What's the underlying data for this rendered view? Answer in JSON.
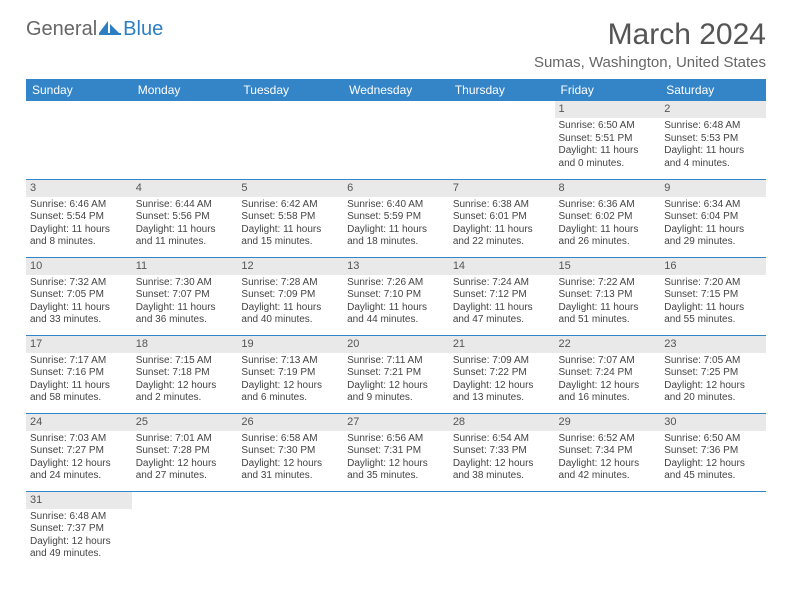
{
  "logo": {
    "part1": "General",
    "part2": "Blue"
  },
  "title": "March 2024",
  "location": "Sumas, Washington, United States",
  "colors": {
    "header_bg": "#3484c8",
    "header_text": "#ffffff",
    "daynum_bg": "#e9e9e9",
    "border": "#3484c8",
    "title_text": "#555555",
    "body_text": "#444444",
    "logo_blue": "#2d7fc4"
  },
  "weekdays": [
    "Sunday",
    "Monday",
    "Tuesday",
    "Wednesday",
    "Thursday",
    "Friday",
    "Saturday"
  ],
  "calendar": {
    "first_weekday_index": 5,
    "days": [
      {
        "n": 1,
        "sunrise": "6:50 AM",
        "sunset": "5:51 PM",
        "daylight": "11 hours and 0 minutes."
      },
      {
        "n": 2,
        "sunrise": "6:48 AM",
        "sunset": "5:53 PM",
        "daylight": "11 hours and 4 minutes."
      },
      {
        "n": 3,
        "sunrise": "6:46 AM",
        "sunset": "5:54 PM",
        "daylight": "11 hours and 8 minutes."
      },
      {
        "n": 4,
        "sunrise": "6:44 AM",
        "sunset": "5:56 PM",
        "daylight": "11 hours and 11 minutes."
      },
      {
        "n": 5,
        "sunrise": "6:42 AM",
        "sunset": "5:58 PM",
        "daylight": "11 hours and 15 minutes."
      },
      {
        "n": 6,
        "sunrise": "6:40 AM",
        "sunset": "5:59 PM",
        "daylight": "11 hours and 18 minutes."
      },
      {
        "n": 7,
        "sunrise": "6:38 AM",
        "sunset": "6:01 PM",
        "daylight": "11 hours and 22 minutes."
      },
      {
        "n": 8,
        "sunrise": "6:36 AM",
        "sunset": "6:02 PM",
        "daylight": "11 hours and 26 minutes."
      },
      {
        "n": 9,
        "sunrise": "6:34 AM",
        "sunset": "6:04 PM",
        "daylight": "11 hours and 29 minutes."
      },
      {
        "n": 10,
        "sunrise": "7:32 AM",
        "sunset": "7:05 PM",
        "daylight": "11 hours and 33 minutes."
      },
      {
        "n": 11,
        "sunrise": "7:30 AM",
        "sunset": "7:07 PM",
        "daylight": "11 hours and 36 minutes."
      },
      {
        "n": 12,
        "sunrise": "7:28 AM",
        "sunset": "7:09 PM",
        "daylight": "11 hours and 40 minutes."
      },
      {
        "n": 13,
        "sunrise": "7:26 AM",
        "sunset": "7:10 PM",
        "daylight": "11 hours and 44 minutes."
      },
      {
        "n": 14,
        "sunrise": "7:24 AM",
        "sunset": "7:12 PM",
        "daylight": "11 hours and 47 minutes."
      },
      {
        "n": 15,
        "sunrise": "7:22 AM",
        "sunset": "7:13 PM",
        "daylight": "11 hours and 51 minutes."
      },
      {
        "n": 16,
        "sunrise": "7:20 AM",
        "sunset": "7:15 PM",
        "daylight": "11 hours and 55 minutes."
      },
      {
        "n": 17,
        "sunrise": "7:17 AM",
        "sunset": "7:16 PM",
        "daylight": "11 hours and 58 minutes."
      },
      {
        "n": 18,
        "sunrise": "7:15 AM",
        "sunset": "7:18 PM",
        "daylight": "12 hours and 2 minutes."
      },
      {
        "n": 19,
        "sunrise": "7:13 AM",
        "sunset": "7:19 PM",
        "daylight": "12 hours and 6 minutes."
      },
      {
        "n": 20,
        "sunrise": "7:11 AM",
        "sunset": "7:21 PM",
        "daylight": "12 hours and 9 minutes."
      },
      {
        "n": 21,
        "sunrise": "7:09 AM",
        "sunset": "7:22 PM",
        "daylight": "12 hours and 13 minutes."
      },
      {
        "n": 22,
        "sunrise": "7:07 AM",
        "sunset": "7:24 PM",
        "daylight": "12 hours and 16 minutes."
      },
      {
        "n": 23,
        "sunrise": "7:05 AM",
        "sunset": "7:25 PM",
        "daylight": "12 hours and 20 minutes."
      },
      {
        "n": 24,
        "sunrise": "7:03 AM",
        "sunset": "7:27 PM",
        "daylight": "12 hours and 24 minutes."
      },
      {
        "n": 25,
        "sunrise": "7:01 AM",
        "sunset": "7:28 PM",
        "daylight": "12 hours and 27 minutes."
      },
      {
        "n": 26,
        "sunrise": "6:58 AM",
        "sunset": "7:30 PM",
        "daylight": "12 hours and 31 minutes."
      },
      {
        "n": 27,
        "sunrise": "6:56 AM",
        "sunset": "7:31 PM",
        "daylight": "12 hours and 35 minutes."
      },
      {
        "n": 28,
        "sunrise": "6:54 AM",
        "sunset": "7:33 PM",
        "daylight": "12 hours and 38 minutes."
      },
      {
        "n": 29,
        "sunrise": "6:52 AM",
        "sunset": "7:34 PM",
        "daylight": "12 hours and 42 minutes."
      },
      {
        "n": 30,
        "sunrise": "6:50 AM",
        "sunset": "7:36 PM",
        "daylight": "12 hours and 45 minutes."
      },
      {
        "n": 31,
        "sunrise": "6:48 AM",
        "sunset": "7:37 PM",
        "daylight": "12 hours and 49 minutes."
      }
    ]
  },
  "labels": {
    "sunrise_prefix": "Sunrise: ",
    "sunset_prefix": "Sunset: ",
    "daylight_prefix": "Daylight: "
  }
}
